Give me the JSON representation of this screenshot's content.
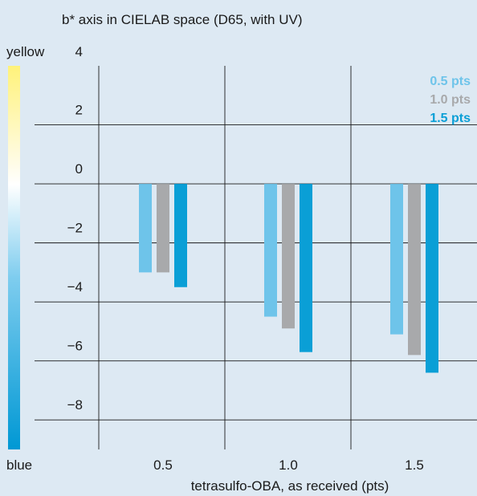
{
  "chart_data": {
    "type": "bar",
    "title": "b* axis in CIELAB space (D65, with UV)",
    "xlabel": "tetrasulfo-OBA, as received (pts)",
    "ylabel": "",
    "scale_top_label": "yellow",
    "scale_bottom_label": "blue",
    "categories": [
      "0.5",
      "1.0",
      "1.5"
    ],
    "series": [
      {
        "name": "0.5 pts",
        "color": "#6ec4ea",
        "values": [
          -3.0,
          -4.5,
          -5.1
        ]
      },
      {
        "name": "1.0 pts",
        "color": "#a8a9ab",
        "values": [
          -3.0,
          -4.9,
          -5.8
        ]
      },
      {
        "name": "1.5 pts",
        "color": "#0a9fd6",
        "values": [
          -3.5,
          -5.7,
          -6.4
        ]
      }
    ],
    "ylim": [
      -9,
      4
    ],
    "yticks": [
      4,
      2,
      0,
      -2,
      -4,
      -6,
      -8
    ],
    "ytick_labels": [
      "4",
      "2",
      "0",
      "−2",
      "−4",
      "−6",
      "−8"
    ],
    "grid": true,
    "legend_position": "top-right"
  }
}
